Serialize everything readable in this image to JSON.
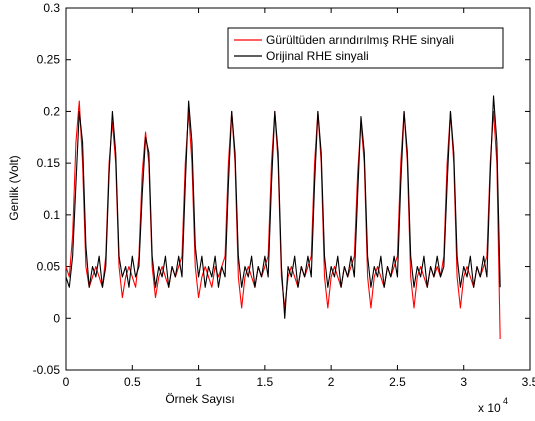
{
  "chart_data": {
    "type": "line",
    "xlabel": "Örnek Sayısı",
    "ylabel": "Genlik (Volt)",
    "x_axis_multiplier": {
      "text": "x 10",
      "exponent": "4"
    },
    "x": [
      0,
      0.025,
      0.05,
      0.075,
      0.1,
      0.125,
      0.15,
      0.175,
      0.2,
      0.225,
      0.25,
      0.275,
      0.3,
      0.325,
      0.35,
      0.375,
      0.4,
      0.425,
      0.45,
      0.475,
      0.5,
      0.525,
      0.55,
      0.575,
      0.6,
      0.625,
      0.65,
      0.675,
      0.7,
      0.725,
      0.75,
      0.775,
      0.8,
      0.825,
      0.85,
      0.875,
      0.9,
      0.925,
      0.95,
      0.975,
      1,
      1.025,
      1.05,
      1.075,
      1.1,
      1.125,
      1.15,
      1.175,
      1.2,
      1.225,
      1.25,
      1.275,
      1.3,
      1.325,
      1.35,
      1.375,
      1.4,
      1.425,
      1.45,
      1.475,
      1.5,
      1.525,
      1.55,
      1.575,
      1.6,
      1.625,
      1.65,
      1.675,
      1.7,
      1.725,
      1.75,
      1.775,
      1.8,
      1.825,
      1.85,
      1.875,
      1.9,
      1.925,
      1.95,
      1.975,
      2,
      2.025,
      2.05,
      2.075,
      2.1,
      2.125,
      2.15,
      2.175,
      2.2,
      2.225,
      2.25,
      2.275,
      2.3,
      2.325,
      2.35,
      2.375,
      2.4,
      2.425,
      2.45,
      2.475,
      2.5,
      2.525,
      2.55,
      2.575,
      2.6,
      2.625,
      2.65,
      2.675,
      2.7,
      2.725,
      2.75,
      2.775,
      2.8,
      2.825,
      2.85,
      2.875,
      2.9,
      2.925,
      2.95,
      2.975,
      3,
      3.025,
      3.05,
      3.075,
      3.1,
      3.125,
      3.15,
      3.175,
      3.2,
      3.225,
      3.25,
      3.275
    ],
    "series": [
      {
        "name": "Gürültüden arındırılmış RHE sinyali",
        "color": "#ff0000",
        "values": [
          0.05,
          0.04,
          0.08,
          0.17,
          0.21,
          0.15,
          0.05,
          0.03,
          0.04,
          0.05,
          0.04,
          0.03,
          0.06,
          0.15,
          0.19,
          0.15,
          0.05,
          0.02,
          0.04,
          0.05,
          0.04,
          0.03,
          0.06,
          0.14,
          0.18,
          0.15,
          0.05,
          0.02,
          0.04,
          0.05,
          0.04,
          0.03,
          0.05,
          0.04,
          0.05,
          0.06,
          0.15,
          0.2,
          0.15,
          0.05,
          0.02,
          0.04,
          0.05,
          0.04,
          0.03,
          0.05,
          0.04,
          0.05,
          0.06,
          0.15,
          0.2,
          0.15,
          0.04,
          0.01,
          0.04,
          0.05,
          0.04,
          0.03,
          0.05,
          0.04,
          0.05,
          0.06,
          0.15,
          0.2,
          0.15,
          0.04,
          0.01,
          0.04,
          0.05,
          0.04,
          0.03,
          0.05,
          0.04,
          0.05,
          0.06,
          0.15,
          0.2,
          0.15,
          0.04,
          0.01,
          0.04,
          0.05,
          0.04,
          0.03,
          0.05,
          0.04,
          0.05,
          0.06,
          0.14,
          0.19,
          0.15,
          0.04,
          0.01,
          0.04,
          0.05,
          0.04,
          0.03,
          0.05,
          0.04,
          0.05,
          0.06,
          0.15,
          0.2,
          0.15,
          0.04,
          0.01,
          0.04,
          0.05,
          0.04,
          0.03,
          0.05,
          0.04,
          0.05,
          0.04,
          0.06,
          0.15,
          0.2,
          0.15,
          0.04,
          0.01,
          0.04,
          0.05,
          0.04,
          0.03,
          0.05,
          0.04,
          0.05,
          0.06,
          0.15,
          0.2,
          0.15,
          -0.02
        ]
      },
      {
        "name": "Orijinal RHE sinyali",
        "color": "#000000",
        "values": [
          0.04,
          0.03,
          0.06,
          0.13,
          0.2,
          0.17,
          0.07,
          0.03,
          0.05,
          0.04,
          0.06,
          0.03,
          0.05,
          0.14,
          0.2,
          0.16,
          0.06,
          0.04,
          0.05,
          0.03,
          0.06,
          0.04,
          0.05,
          0.12,
          0.175,
          0.16,
          0.06,
          0.03,
          0.05,
          0.04,
          0.06,
          0.03,
          0.05,
          0.04,
          0.06,
          0.04,
          0.13,
          0.21,
          0.17,
          0.07,
          0.04,
          0.06,
          0.03,
          0.05,
          0.04,
          0.06,
          0.03,
          0.05,
          0.04,
          0.13,
          0.2,
          0.16,
          0.06,
          0.03,
          0.05,
          0.04,
          0.06,
          0.03,
          0.05,
          0.04,
          0.06,
          0.04,
          0.13,
          0.2,
          0.16,
          0.05,
          0.0,
          0.05,
          0.04,
          0.06,
          0.03,
          0.05,
          0.04,
          0.06,
          0.04,
          0.13,
          0.2,
          0.16,
          0.06,
          0.03,
          0.05,
          0.04,
          0.06,
          0.03,
          0.05,
          0.04,
          0.06,
          0.04,
          0.12,
          0.195,
          0.16,
          0.06,
          0.03,
          0.05,
          0.04,
          0.06,
          0.03,
          0.05,
          0.04,
          0.06,
          0.04,
          0.13,
          0.2,
          0.16,
          0.06,
          0.03,
          0.05,
          0.04,
          0.06,
          0.03,
          0.05,
          0.04,
          0.06,
          0.04,
          0.05,
          0.13,
          0.2,
          0.16,
          0.06,
          0.03,
          0.05,
          0.04,
          0.06,
          0.03,
          0.05,
          0.04,
          0.06,
          0.04,
          0.14,
          0.215,
          0.17,
          0.03
        ]
      }
    ],
    "xlim": [
      0,
      3.5
    ],
    "xticks": [
      0,
      0.5,
      1,
      1.5,
      2,
      2.5,
      3,
      3.5
    ],
    "ylim": [
      -0.05,
      0.3
    ],
    "yticks": [
      -0.05,
      0,
      0.05,
      0.1,
      0.15,
      0.2,
      0.25,
      0.3
    ],
    "grid": false,
    "legend": "upper right"
  }
}
